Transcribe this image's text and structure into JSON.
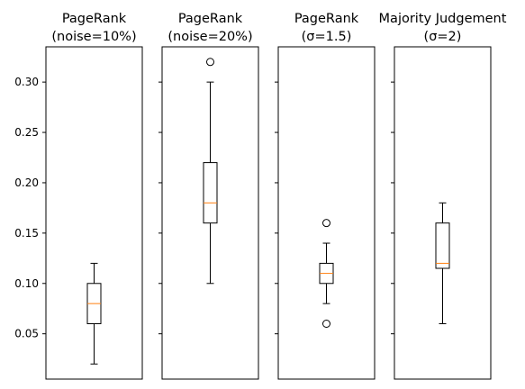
{
  "chart_data": {
    "type": "boxplot",
    "shared_y": true,
    "ylim": [
      0.005,
      0.335
    ],
    "yticks": [
      0.05,
      0.1,
      0.15,
      0.2,
      0.25,
      0.3
    ],
    "ytick_labels": [
      "0.05",
      "0.10",
      "0.15",
      "0.20",
      "0.25",
      "0.30"
    ],
    "colors": {
      "box": "#000000",
      "median": "#ff7f0e",
      "frame": "#000000"
    },
    "panels": [
      {
        "title_lines": [
          "PageRank",
          "(noise=10%)"
        ],
        "whisker_low": 0.02,
        "q1": 0.06,
        "median": 0.08,
        "q3": 0.1,
        "whisker_high": 0.12,
        "outliers": []
      },
      {
        "title_lines": [
          "PageRank",
          "(noise=20%)"
        ],
        "whisker_low": 0.1,
        "q1": 0.16,
        "median": 0.18,
        "q3": 0.22,
        "whisker_high": 0.3,
        "outliers": [
          0.32
        ]
      },
      {
        "title_lines": [
          "PageRank",
          "(σ=1.5)"
        ],
        "whisker_low": 0.08,
        "q1": 0.1,
        "median": 0.11,
        "q3": 0.12,
        "whisker_high": 0.14,
        "outliers": [
          0.16,
          0.06
        ]
      },
      {
        "title_lines": [
          "Majority Judgement",
          "(σ=2)"
        ],
        "whisker_low": 0.06,
        "q1": 0.115,
        "median": 0.12,
        "q3": 0.16,
        "whisker_high": 0.18,
        "outliers": []
      }
    ]
  }
}
